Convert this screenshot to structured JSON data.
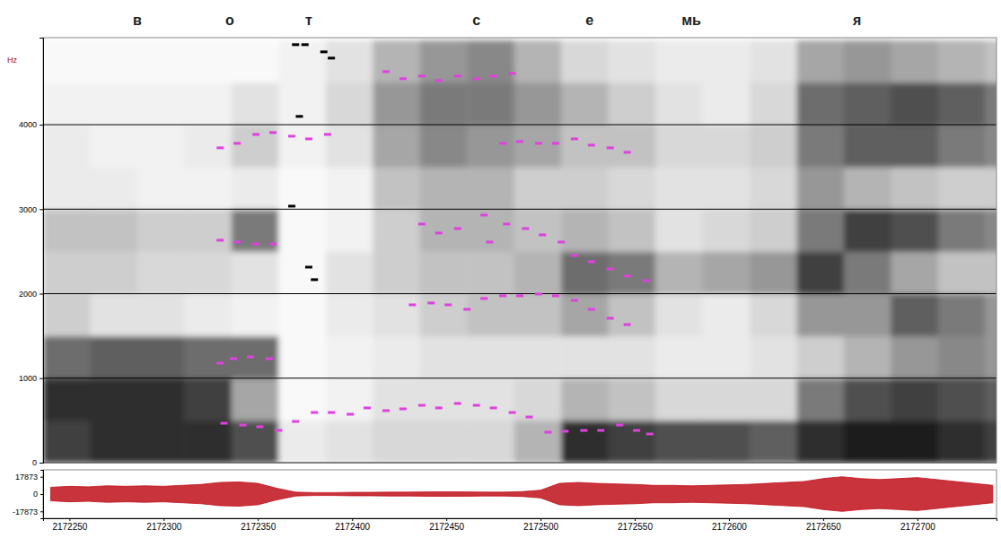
{
  "chart_data": {
    "type": "spectrogram",
    "y_label": "Hz",
    "xlim": [
      2172236,
      2172742
    ],
    "xticks": [
      2172250,
      2172300,
      2172350,
      2172400,
      2172450,
      2172500,
      2172550,
      2172600,
      2172650,
      2172700
    ],
    "ylim": [
      0,
      5030
    ],
    "yticks": [
      0,
      1000,
      2000,
      3000,
      4000
    ],
    "grid": true,
    "segments": [
      {
        "label": "в",
        "x": 2172286
      },
      {
        "label": "о",
        "x": 2172335
      },
      {
        "label": "т",
        "x": 2172377
      },
      {
        "label": "с",
        "x": 2172466
      },
      {
        "label": "е",
        "x": 2172526
      },
      {
        "label": "мь",
        "x": 2172580
      },
      {
        "label": "я",
        "x": 2172668
      }
    ],
    "spectrogram": {
      "time_bins": [
        2172236,
        2172261,
        2172286,
        2172311,
        2172336,
        2172361,
        2172386,
        2172411,
        2172436,
        2172461,
        2172486,
        2172511,
        2172536,
        2172561,
        2172586,
        2172611,
        2172636,
        2172661,
        2172686,
        2172711,
        2172736,
        2172761
      ],
      "freq_bins": [
        0,
        500,
        1000,
        1500,
        2000,
        2500,
        3000,
        3500,
        4000,
        4500,
        5000
      ],
      "intensity": [
        [
          0.8,
          0.85,
          0.65,
          0.3,
          0.3,
          0.35,
          0.15,
          0.15,
          0.1,
          0.05
        ],
        [
          0.85,
          0.85,
          0.7,
          0.2,
          0.3,
          0.35,
          0.15,
          0.1,
          0.1,
          0.05
        ],
        [
          0.85,
          0.85,
          0.7,
          0.2,
          0.25,
          0.3,
          0.1,
          0.1,
          0.1,
          0.05
        ],
        [
          0.85,
          0.8,
          0.65,
          0.15,
          0.25,
          0.3,
          0.1,
          0.15,
          0.1,
          0.05
        ],
        [
          0.75,
          0.45,
          0.65,
          0.1,
          0.2,
          0.6,
          0.15,
          0.3,
          0.2,
          0.05
        ],
        [
          0.15,
          0.05,
          0.05,
          0.05,
          0.05,
          0.05,
          0.05,
          0.1,
          0.1,
          0.1
        ],
        [
          0.2,
          0.1,
          0.1,
          0.15,
          0.2,
          0.1,
          0.1,
          0.2,
          0.25,
          0.2
        ],
        [
          0.25,
          0.2,
          0.15,
          0.2,
          0.3,
          0.3,
          0.35,
          0.45,
          0.5,
          0.4
        ],
        [
          0.25,
          0.2,
          0.2,
          0.3,
          0.35,
          0.4,
          0.4,
          0.55,
          0.6,
          0.5
        ],
        [
          0.25,
          0.2,
          0.2,
          0.35,
          0.35,
          0.4,
          0.4,
          0.5,
          0.6,
          0.55
        ],
        [
          0.4,
          0.25,
          0.2,
          0.35,
          0.4,
          0.35,
          0.3,
          0.45,
          0.5,
          0.4
        ],
        [
          0.85,
          0.4,
          0.2,
          0.45,
          0.65,
          0.4,
          0.3,
          0.35,
          0.4,
          0.25
        ],
        [
          0.8,
          0.35,
          0.2,
          0.35,
          0.6,
          0.35,
          0.25,
          0.35,
          0.3,
          0.2
        ],
        [
          0.75,
          0.25,
          0.15,
          0.2,
          0.4,
          0.2,
          0.2,
          0.25,
          0.2,
          0.15
        ],
        [
          0.75,
          0.25,
          0.15,
          0.15,
          0.45,
          0.25,
          0.2,
          0.25,
          0.15,
          0.15
        ],
        [
          0.7,
          0.25,
          0.2,
          0.25,
          0.5,
          0.3,
          0.25,
          0.3,
          0.25,
          0.2
        ],
        [
          0.85,
          0.6,
          0.3,
          0.5,
          0.8,
          0.6,
          0.5,
          0.6,
          0.65,
          0.45
        ],
        [
          0.9,
          0.75,
          0.4,
          0.5,
          0.6,
          0.8,
          0.4,
          0.7,
          0.7,
          0.5
        ],
        [
          0.9,
          0.8,
          0.5,
          0.7,
          0.45,
          0.75,
          0.35,
          0.7,
          0.75,
          0.45
        ],
        [
          0.85,
          0.75,
          0.55,
          0.6,
          0.35,
          0.6,
          0.3,
          0.6,
          0.7,
          0.4
        ],
        [
          0.8,
          0.7,
          0.5,
          0.5,
          0.35,
          0.55,
          0.3,
          0.55,
          0.6,
          0.35
        ]
      ]
    },
    "series": [
      {
        "color": "#e040e0",
        "marker": "dash",
        "x": [
          2172332,
          2172342,
          2172351,
          2172361,
          2172370,
          2172380,
          2172389,
          2172399,
          2172408,
          2172418,
          2172427,
          2172437,
          2172446,
          2172456,
          2172466,
          2172475,
          2172485,
          2172494,
          2172504,
          2172513,
          2172523,
          2172532,
          2172542,
          2172551,
          2172558
        ],
        "values": [
          467,
          446,
          425,
          382,
          488,
          594,
          594,
          573,
          648,
          616,
          637,
          679,
          648,
          701,
          679,
          648,
          594,
          541,
          361,
          372,
          382,
          382,
          446,
          382,
          340
        ]
      },
      {
        "color": "#e040e0",
        "marker": "dash",
        "x": [
          2172330,
          2172337,
          2172346,
          2172356
        ],
        "values": [
          1178,
          1231,
          1252,
          1231
        ]
      },
      {
        "color": "#e040e0",
        "marker": "dash",
        "x": [
          2172432,
          2172442,
          2172451,
          2172461,
          2172470,
          2172480,
          2172489,
          2172499,
          2172508,
          2172518,
          2172527,
          2172537,
          2172546
        ],
        "values": [
          1868,
          1890,
          1868,
          1815,
          1943,
          1975,
          1975,
          1996,
          1975,
          1921,
          1815,
          1709,
          1635
        ]
      },
      {
        "color": "#e040e0",
        "marker": "dash",
        "x": [
          2172330,
          2172339,
          2172349,
          2172358
        ],
        "values": [
          2633,
          2611,
          2590,
          2590
        ]
      },
      {
        "color": "#e040e0",
        "marker": "dash",
        "x": [
          2172473,
          2172482,
          2172492,
          2172501,
          2172511,
          2172518,
          2172527,
          2172537,
          2172546,
          2172556
        ],
        "values": [
          2611,
          2824,
          2771,
          2696,
          2611,
          2452,
          2378,
          2293,
          2208,
          2155
        ]
      },
      {
        "color": "#e040e0",
        "marker": "dash",
        "x": [
          2172330,
          2172339,
          2172349,
          2172358,
          2172368,
          2172377,
          2172387
        ],
        "values": [
          3726,
          3779,
          3885,
          3907,
          3864,
          3832,
          3885
        ]
      },
      {
        "color": "#e040e0",
        "marker": "dash",
        "x": [
          2172480,
          2172489,
          2172499,
          2172508,
          2172518,
          2172527,
          2172537,
          2172546
        ],
        "values": [
          3779,
          3800,
          3779,
          3779,
          3832,
          3758,
          3726,
          3673
        ]
      },
      {
        "color": "#e040e0",
        "marker": "dash",
        "x": [
          2172418,
          2172427,
          2172437,
          2172446,
          2172456,
          2172466,
          2172475,
          2172485
        ],
        "values": [
          4628,
          4544,
          4575,
          4522,
          4575,
          4544,
          4575,
          4607
        ]
      },
      {
        "color": "#e040e0",
        "marker": "dash",
        "x": [
          2172437,
          2172446,
          2172456,
          2172470
        ],
        "values": [
          2824,
          2718,
          2771,
          2930
        ]
      },
      {
        "color": "#000000",
        "marker": "dash",
        "x": [
          2172370,
          2172375,
          2172385,
          2172389,
          2172372,
          2172368,
          2172377,
          2172380
        ],
        "values": [
          4947,
          4947,
          4862,
          4788,
          4098,
          3036,
          2314,
          2166
        ]
      }
    ],
    "waveform": {
      "color": "#c0101a",
      "ylim": [
        -25000,
        25000
      ],
      "yticks": [
        17873,
        0,
        -17873
      ],
      "x": [
        2172240,
        2172250,
        2172260,
        2172270,
        2172280,
        2172290,
        2172300,
        2172310,
        2172320,
        2172330,
        2172340,
        2172350,
        2172360,
        2172370,
        2172380,
        2172390,
        2172400,
        2172410,
        2172420,
        2172430,
        2172440,
        2172450,
        2172460,
        2172470,
        2172480,
        2172490,
        2172500,
        2172510,
        2172520,
        2172530,
        2172540,
        2172550,
        2172560,
        2172570,
        2172580,
        2172590,
        2172600,
        2172610,
        2172620,
        2172630,
        2172640,
        2172650,
        2172660,
        2172670,
        2172680,
        2172690,
        2172700,
        2172710,
        2172720,
        2172730,
        2172740
      ],
      "values": [
        7000,
        8000,
        7500,
        8500,
        8000,
        8500,
        8000,
        9000,
        10000,
        12000,
        12500,
        11000,
        6000,
        2000,
        1500,
        1500,
        1800,
        1800,
        2000,
        2000,
        2200,
        2300,
        2200,
        2000,
        2000,
        2500,
        4000,
        11000,
        12000,
        11000,
        10500,
        10000,
        9000,
        9000,
        8500,
        9000,
        9500,
        10000,
        11000,
        12000,
        13000,
        16000,
        17873,
        16000,
        15000,
        16000,
        17000,
        15000,
        13000,
        11000,
        9000
      ]
    }
  }
}
